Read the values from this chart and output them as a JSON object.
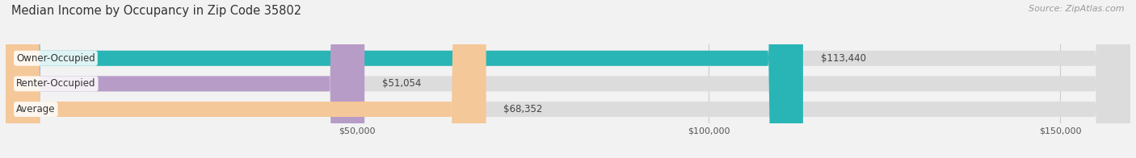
{
  "title": "Median Income by Occupancy in Zip Code 35802",
  "source": "Source: ZipAtlas.com",
  "categories": [
    "Owner-Occupied",
    "Renter-Occupied",
    "Average"
  ],
  "values": [
    113440,
    51054,
    68352
  ],
  "bar_colors": [
    "#29b5b5",
    "#b89cc8",
    "#f5c899"
  ],
  "value_labels": [
    "$113,440",
    "$51,054",
    "$68,352"
  ],
  "xlim": [
    0,
    160000
  ],
  "xtick_vals": [
    50000,
    100000,
    150000
  ],
  "xtick_labels": [
    "$50,000",
    "$100,000",
    "$150,000"
  ],
  "title_fontsize": 10.5,
  "label_fontsize": 8.5,
  "tick_fontsize": 8,
  "source_fontsize": 8,
  "bar_height": 0.6,
  "background_color": "#f2f2f2"
}
